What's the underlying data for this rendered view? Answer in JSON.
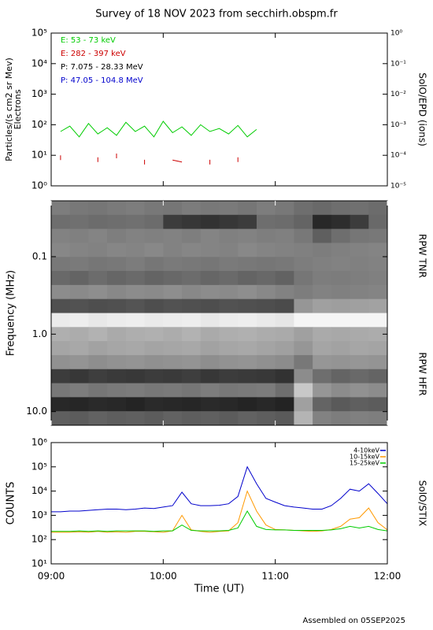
{
  "title": "Survey of 18 NOV 2023 from secchirh.obspm.fr",
  "footer": "Assembled on 05SEP2025",
  "chart_data": [
    {
      "type": "line",
      "log_y": true,
      "ylabel": "Particles/(s cm2 sr Mev)",
      "ylabel2": "Electrons",
      "y2label": "SolO/EPD (ions)",
      "xlim": [
        "09:00",
        "12:00"
      ],
      "xticks": [
        "09:00",
        "10:00",
        "11:00",
        "12:00"
      ],
      "ylim": [
        1,
        100000
      ],
      "yticks": [
        {
          "value": 1,
          "label": "10⁰"
        },
        {
          "value": 10,
          "label": "10¹"
        },
        {
          "value": 100,
          "label": "10²"
        },
        {
          "value": 1000,
          "label": "10³"
        },
        {
          "value": 10000,
          "label": "10⁴"
        },
        {
          "value": 100000,
          "label": "10⁵"
        }
      ],
      "y2lim": [
        1e-05,
        1
      ],
      "y2ticks": [
        {
          "value": 1e-05,
          "label": "10⁻⁵"
        },
        {
          "value": 0.0001,
          "label": "10⁻⁴"
        },
        {
          "value": 0.001,
          "label": "10⁻³"
        },
        {
          "value": 0.01,
          "label": "10⁻²"
        },
        {
          "value": 0.1,
          "label": "10⁻¹"
        },
        {
          "value": 1,
          "label": "10⁰"
        }
      ],
      "x": [
        "09:00",
        "09:05",
        "09:10",
        "09:15",
        "09:20",
        "09:25",
        "09:30",
        "09:35",
        "09:40",
        "09:45",
        "09:50",
        "09:55",
        "10:00",
        "10:05",
        "10:10",
        "10:15",
        "10:20",
        "10:25",
        "10:30",
        "10:35",
        "10:40",
        "10:45",
        "10:50",
        "10:55",
        "11:00",
        "11:05",
        "11:10",
        "11:15",
        "11:20",
        "11:25",
        "11:30",
        "11:35",
        "11:40",
        "11:45",
        "11:50",
        "11:55",
        "12:00"
      ],
      "series": [
        {
          "name": "E: 53 - 73 keV",
          "color": "#00cc00",
          "values": [
            null,
            60,
            90,
            40,
            110,
            50,
            80,
            45,
            120,
            60,
            90,
            40,
            130,
            55,
            85,
            45,
            100,
            60,
            75,
            50,
            95,
            40,
            70,
            null,
            null,
            null,
            null,
            null,
            null,
            null,
            null,
            null,
            null,
            null,
            null,
            null,
            null
          ]
        },
        {
          "name": "E: 282 - 397 keV",
          "color": "#cc0000",
          "values": [
            null,
            7,
            null,
            null,
            null,
            6,
            null,
            8,
            null,
            null,
            5,
            null,
            null,
            7,
            6,
            null,
            null,
            5,
            null,
            null,
            6,
            null,
            null,
            null,
            null,
            null,
            null,
            null,
            null,
            null,
            null,
            null,
            null,
            null,
            null,
            null,
            null
          ]
        },
        {
          "name": "P: 7.075 - 28.33 MeV",
          "color": "#000000",
          "axis": "y2",
          "values": [
            null,
            null,
            null,
            null,
            null,
            null,
            null,
            null,
            null,
            null,
            null,
            null,
            null,
            null,
            null,
            null,
            null,
            null,
            null,
            null,
            null,
            null,
            null,
            null,
            null,
            null,
            null,
            null,
            null,
            null,
            null,
            null,
            null,
            null,
            null,
            null,
            null
          ]
        },
        {
          "name": "P: 47.05 - 104.8 MeV",
          "color": "#0000cc",
          "axis": "y2",
          "values": [
            null,
            null,
            null,
            null,
            null,
            null,
            null,
            null,
            null,
            null,
            null,
            null,
            null,
            null,
            null,
            null,
            null,
            null,
            null,
            null,
            null,
            null,
            null,
            null,
            null,
            null,
            null,
            null,
            null,
            null,
            null,
            null,
            null,
            null,
            null,
            null,
            null
          ]
        }
      ]
    },
    {
      "type": "heatmap",
      "log_y": true,
      "y_reversed": true,
      "ylabel": "Frequency (MHz)",
      "y2label": "RPW TNR",
      "y3label": "RPW HFR",
      "xlim": [
        "09:00",
        "12:00"
      ],
      "xticks": [
        "09:00",
        "10:00",
        "11:00",
        "12:00"
      ],
      "ylim": [
        0.019,
        15
      ],
      "yticks": [
        0.1,
        {
          "value": 1,
          "label": "1.0"
        },
        {
          "value": 10,
          "label": "10.0"
        }
      ],
      "z": [
        [
          125,
          120,
          118,
          122,
          125,
          120,
          118,
          124,
          120,
          122,
          118,
          125,
          120,
          110,
          105,
          110,
          112,
          108
        ],
        [
          110,
          112,
          108,
          110,
          112,
          108,
          60,
          55,
          50,
          55,
          60,
          110,
          108,
          100,
          40,
          45,
          60,
          105
        ],
        [
          130,
          128,
          132,
          126,
          130,
          128,
          130,
          126,
          132,
          128,
          130,
          126,
          128,
          120,
          95,
          110,
          118,
          120
        ],
        [
          135,
          132,
          130,
          134,
          132,
          136,
          130,
          134,
          132,
          130,
          136,
          132,
          130,
          128,
          125,
          128,
          130,
          132
        ],
        [
          120,
          122,
          118,
          120,
          124,
          118,
          122,
          120,
          118,
          122,
          120,
          118,
          120,
          125,
          128,
          130,
          128,
          130
        ],
        [
          105,
          100,
          108,
          102,
          106,
          100,
          104,
          108,
          102,
          106,
          100,
          104,
          98,
          118,
          125,
          124,
          126,
          128
        ],
        [
          140,
          138,
          142,
          136,
          140,
          138,
          142,
          136,
          140,
          138,
          142,
          136,
          130,
          125,
          130,
          128,
          130,
          132
        ],
        [
          80,
          82,
          78,
          80,
          84,
          78,
          82,
          80,
          78,
          82,
          80,
          78,
          75,
          150,
          160,
          158,
          160,
          162
        ],
        [
          235,
          238,
          232,
          236,
          238,
          234,
          236,
          238,
          232,
          236,
          238,
          234,
          230,
          245,
          245,
          245,
          245,
          245
        ],
        [
          175,
          172,
          178,
          170,
          174,
          176,
          172,
          178,
          170,
          174,
          176,
          172,
          170,
          160,
          170,
          168,
          170,
          172
        ],
        [
          165,
          168,
          162,
          166,
          168,
          164,
          166,
          168,
          162,
          166,
          168,
          164,
          160,
          150,
          165,
          162,
          166,
          164
        ],
        [
          145,
          148,
          142,
          146,
          148,
          144,
          146,
          148,
          142,
          146,
          148,
          144,
          140,
          120,
          150,
          148,
          150,
          148
        ],
        [
          60,
          55,
          62,
          58,
          56,
          60,
          58,
          62,
          55,
          60,
          58,
          56,
          50,
          140,
          110,
          100,
          105,
          100
        ],
        [
          120,
          125,
          118,
          122,
          124,
          120,
          122,
          118,
          125,
          120,
          122,
          124,
          110,
          200,
          150,
          140,
          145,
          140
        ],
        [
          40,
          38,
          42,
          40,
          36,
          42,
          40,
          38,
          42,
          40,
          36,
          40,
          35,
          160,
          100,
          90,
          95,
          92
        ],
        [
          95,
          92,
          98,
          94,
          96,
          92,
          98,
          94,
          96,
          92,
          98,
          94,
          90,
          180,
          130,
          125,
          128,
          126
        ]
      ]
    },
    {
      "type": "line",
      "log_y": true,
      "ylabel": "COUNTS",
      "y2label": "SolO/STIX",
      "xlabel": "Time (UT)",
      "xlim": [
        "09:00",
        "12:00"
      ],
      "xticks": [
        "09:00",
        "10:00",
        "11:00",
        "12:00"
      ],
      "ylim": [
        10,
        1000000
      ],
      "yticks": [
        {
          "value": 10,
          "label": "10¹"
        },
        {
          "value": 100,
          "label": "10²"
        },
        {
          "value": 1000,
          "label": "10³"
        },
        {
          "value": 10000,
          "label": "10⁴"
        },
        {
          "value": 100000,
          "label": "10⁵"
        },
        {
          "value": 1000000,
          "label": "10⁶"
        }
      ],
      "x": [
        "09:00",
        "09:05",
        "09:10",
        "09:15",
        "09:20",
        "09:25",
        "09:30",
        "09:35",
        "09:40",
        "09:45",
        "09:50",
        "09:55",
        "10:00",
        "10:05",
        "10:10",
        "10:15",
        "10:20",
        "10:25",
        "10:30",
        "10:35",
        "10:40",
        "10:45",
        "10:50",
        "10:55",
        "11:00",
        "11:05",
        "11:10",
        "11:15",
        "11:20",
        "11:25",
        "11:30",
        "11:35",
        "11:40",
        "11:45",
        "11:50",
        "11:55",
        "12:00"
      ],
      "series": [
        {
          "name": "4-10keV",
          "color": "#0000cc",
          "values": [
            1400,
            1400,
            1500,
            1500,
            1600,
            1700,
            1800,
            1800,
            1700,
            1800,
            2000,
            1900,
            2200,
            2500,
            9000,
            3000,
            2500,
            2500,
            2600,
            3000,
            6000,
            100000,
            20000,
            5000,
            3500,
            2500,
            2200,
            2000,
            1800,
            1800,
            2500,
            5000,
            12000,
            10000,
            20000,
            8000,
            3000
          ]
        },
        {
          "name": "10-15keV",
          "color": "#ff9900",
          "values": [
            200,
            200,
            200,
            210,
            200,
            220,
            200,
            210,
            200,
            220,
            220,
            210,
            200,
            230,
            1000,
            250,
            220,
            200,
            220,
            230,
            500,
            10000,
            1500,
            400,
            260,
            250,
            240,
            230,
            220,
            230,
            260,
            350,
            700,
            800,
            2000,
            500,
            250
          ]
        },
        {
          "name": "15-25keV",
          "color": "#00cc00",
          "values": [
            220,
            220,
            220,
            230,
            220,
            230,
            220,
            230,
            230,
            230,
            230,
            220,
            230,
            230,
            400,
            240,
            230,
            230,
            230,
            240,
            300,
            1500,
            350,
            260,
            250,
            250,
            240,
            240,
            240,
            240,
            250,
            280,
            350,
            300,
            350,
            260,
            230
          ]
        }
      ]
    }
  ]
}
